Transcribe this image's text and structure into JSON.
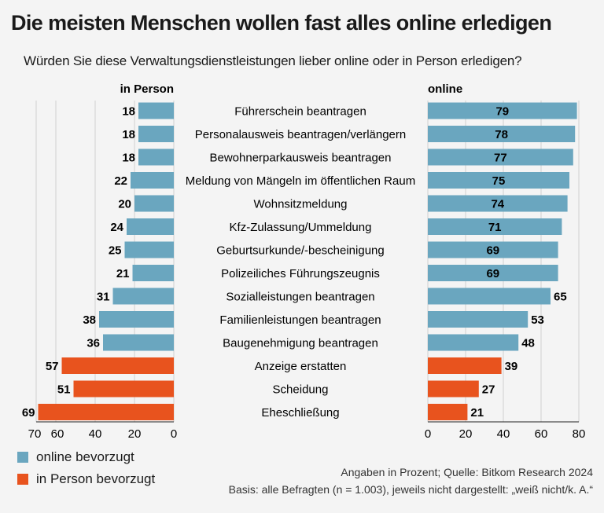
{
  "title": "Die meisten Menschen wollen fast alles online erledigen",
  "subtitle": "Würden Sie diese Verwaltungsdienstleistungen lieber online oder in Person erledigen?",
  "legend": {
    "online_label": "online bevorzugt",
    "person_label": "in Person bevorzugt"
  },
  "source": {
    "line1": "Angaben in Prozent; Quelle: Bitkom Research 2024",
    "line2": "Basis: alle Befragten (n = 1.003), jeweils nicht dargestellt: „weiß nicht/k. A.“"
  },
  "colors": {
    "online_preferred": "#6aa6bf",
    "person_preferred": "#e8531e",
    "grid": "#d0d0d0",
    "axis": "#222222"
  },
  "chart_data": {
    "type": "bar",
    "orientation": "horizontal",
    "panels": [
      {
        "name": "in Person",
        "xlim": [
          70,
          0
        ],
        "ticks": [
          70,
          60,
          40,
          20,
          0
        ]
      },
      {
        "name": "online",
        "xlim": [
          0,
          80
        ],
        "ticks": [
          0,
          20,
          40,
          60,
          80
        ]
      }
    ],
    "categories": [
      "Führerschein beantragen",
      "Personalausweis beantragen/verlängern",
      "Bewohnerparkausweis beantragen",
      "Meldung von Mängeln im öffentlichen Raum",
      "Wohnsitzmeldung",
      "Kfz-Zulassung/Ummeldung",
      "Geburtsurkunde/-bescheinigung",
      "Polizeiliches Führungszeugnis",
      "Sozialleistungen beantragen",
      "Familienleistungen beantragen",
      "Baugenehmigung beantragen",
      "Anzeige erstatten",
      "Scheidung",
      "Eheschließung"
    ],
    "series": [
      {
        "name": "in Person",
        "values": [
          18,
          18,
          18,
          22,
          20,
          24,
          25,
          21,
          31,
          38,
          36,
          57,
          51,
          69
        ]
      },
      {
        "name": "online",
        "values": [
          79,
          78,
          77,
          75,
          74,
          71,
          69,
          69,
          65,
          53,
          48,
          39,
          27,
          21
        ]
      }
    ],
    "preferred": [
      "online",
      "online",
      "online",
      "online",
      "online",
      "online",
      "online",
      "online",
      "online",
      "online",
      "online",
      "person",
      "person",
      "person"
    ]
  }
}
